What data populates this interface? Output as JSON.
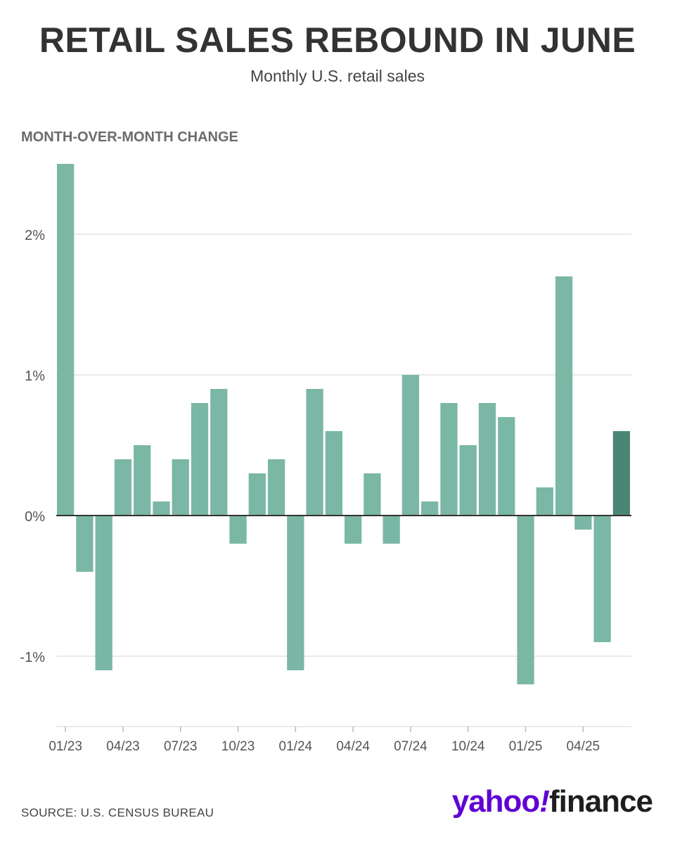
{
  "header": {
    "title": "RETAIL SALES REBOUND IN JUNE",
    "subtitle": "Monthly U.S. retail sales"
  },
  "footer": {
    "source": "SOURCE: U.S. CENSUS BUREAU",
    "logo_brand": "yahoo",
    "logo_mark": "!",
    "logo_product": "finance"
  },
  "chart_data": {
    "type": "bar",
    "title": "RETAIL SALES REBOUND IN JUNE",
    "subtitle": "Monthly U.S. retail sales",
    "ylabel": "MONTH-OVER-MONTH CHANGE",
    "xlabel": "",
    "categories": [
      "01/23",
      "02/23",
      "03/23",
      "04/23",
      "05/23",
      "06/23",
      "07/23",
      "08/23",
      "09/23",
      "10/23",
      "11/23",
      "12/23",
      "01/24",
      "02/24",
      "03/24",
      "04/24",
      "05/24",
      "06/24",
      "07/24",
      "08/24",
      "09/24",
      "10/24",
      "11/24",
      "12/24",
      "01/25",
      "02/25",
      "03/25",
      "04/25",
      "05/25",
      "06/25"
    ],
    "values": [
      2.5,
      -0.4,
      -1.1,
      0.4,
      0.5,
      0.1,
      0.4,
      0.8,
      0.9,
      -0.2,
      0.3,
      0.4,
      -1.1,
      0.9,
      0.6,
      -0.2,
      0.3,
      -0.2,
      1.0,
      0.1,
      0.8,
      0.5,
      0.8,
      0.7,
      -1.2,
      0.2,
      1.7,
      -0.1,
      -0.9,
      0.6
    ],
    "ylim": [
      -1.5,
      2.5
    ],
    "yticks": [
      -1,
      0,
      1,
      2
    ],
    "ytick_labels": [
      "-1%",
      "0%",
      "1%",
      "2%"
    ],
    "xtick_labels": [
      "01/23",
      "04/23",
      "07/23",
      "10/23",
      "01/24",
      "04/24",
      "07/24",
      "10/24",
      "01/25",
      "04/25"
    ],
    "grid": true,
    "colors": {
      "bar": "#7ab7a5",
      "highlight": "#4a8675",
      "grid": "#e2e2e2",
      "zero_line": "#333333"
    },
    "highlight_index": 29
  }
}
